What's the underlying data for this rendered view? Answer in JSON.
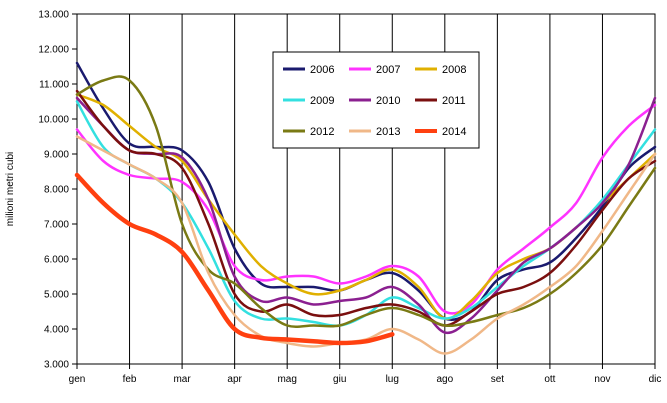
{
  "chart_data": {
    "type": "line",
    "title": "",
    "ylabel": "milioni metri cubi",
    "xlabel": "",
    "categories": [
      "gen",
      "feb",
      "mar",
      "apr",
      "mag",
      "giu",
      "lug",
      "ago",
      "set",
      "ott",
      "nov",
      "dic"
    ],
    "ylim": [
      3000,
      13000
    ],
    "ystep": 1000,
    "ytick_labels": [
      "3.000",
      "4.000",
      "5.000",
      "6.000",
      "7.000",
      "8.000",
      "9.000",
      "10.000",
      "11.000",
      "12.000",
      "13.000"
    ],
    "legend_position": "top-center",
    "legend_columns": 3,
    "series": [
      {
        "name": "2006",
        "color": "#1a1a6e",
        "width": 2.5,
        "points": [
          [
            0,
            11600
          ],
          [
            0.5,
            10300
          ],
          [
            1,
            9300
          ],
          [
            1.5,
            9200
          ],
          [
            2,
            9100
          ],
          [
            2.5,
            8200
          ],
          [
            3,
            6300
          ],
          [
            3.5,
            5300
          ],
          [
            4,
            5200
          ],
          [
            4.5,
            5200
          ],
          [
            5,
            5100
          ],
          [
            5.5,
            5400
          ],
          [
            6,
            5600
          ],
          [
            6.5,
            5100
          ],
          [
            7,
            4300
          ],
          [
            7.5,
            4500
          ],
          [
            8,
            5400
          ],
          [
            8.5,
            5700
          ],
          [
            9,
            5900
          ],
          [
            9.5,
            6600
          ],
          [
            10,
            7500
          ],
          [
            10.5,
            8600
          ],
          [
            11,
            9200
          ]
        ]
      },
      {
        "name": "2007",
        "color": "#ff33ff",
        "width": 2.5,
        "points": [
          [
            0,
            9700
          ],
          [
            0.5,
            8800
          ],
          [
            1,
            8400
          ],
          [
            1.5,
            8300
          ],
          [
            2,
            8200
          ],
          [
            2.5,
            7400
          ],
          [
            3,
            5800
          ],
          [
            3.5,
            5400
          ],
          [
            4,
            5500
          ],
          [
            4.5,
            5500
          ],
          [
            5,
            5300
          ],
          [
            5.5,
            5500
          ],
          [
            6,
            5800
          ],
          [
            6.5,
            5500
          ],
          [
            7,
            4500
          ],
          [
            7.5,
            4700
          ],
          [
            8,
            5700
          ],
          [
            8.5,
            6300
          ],
          [
            9,
            6900
          ],
          [
            9.5,
            7600
          ],
          [
            10,
            8900
          ],
          [
            10.5,
            9800
          ],
          [
            11,
            10400
          ]
        ]
      },
      {
        "name": "2008",
        "color": "#e0b000",
        "width": 2.5,
        "points": [
          [
            0,
            10700
          ],
          [
            0.5,
            10400
          ],
          [
            1,
            9800
          ],
          [
            1.5,
            9200
          ],
          [
            2,
            8800
          ],
          [
            2.5,
            7700
          ],
          [
            3,
            6700
          ],
          [
            3.5,
            5800
          ],
          [
            4,
            5300
          ],
          [
            4.5,
            5000
          ],
          [
            5,
            5100
          ],
          [
            5.5,
            5400
          ],
          [
            6,
            5700
          ],
          [
            6.5,
            5200
          ],
          [
            7,
            4300
          ],
          [
            7.5,
            4800
          ],
          [
            8,
            5600
          ],
          [
            8.5,
            6000
          ],
          [
            9,
            6300
          ],
          [
            9.5,
            6900
          ],
          [
            10,
            7600
          ],
          [
            10.5,
            8300
          ],
          [
            11,
            9000
          ]
        ]
      },
      {
        "name": "2009",
        "color": "#33e0e0",
        "width": 2.5,
        "points": [
          [
            0,
            10500
          ],
          [
            0.5,
            9200
          ],
          [
            1,
            8700
          ],
          [
            1.5,
            8300
          ],
          [
            2,
            7600
          ],
          [
            2.5,
            6300
          ],
          [
            3,
            4800
          ],
          [
            3.5,
            4300
          ],
          [
            4,
            4300
          ],
          [
            4.5,
            4200
          ],
          [
            5,
            4100
          ],
          [
            5.5,
            4400
          ],
          [
            6,
            4900
          ],
          [
            6.5,
            4600
          ],
          [
            7,
            4300
          ],
          [
            7.5,
            4600
          ],
          [
            8,
            5200
          ],
          [
            8.5,
            5800
          ],
          [
            9,
            6300
          ],
          [
            9.5,
            6900
          ],
          [
            10,
            7700
          ],
          [
            10.5,
            8700
          ],
          [
            11,
            9700
          ]
        ]
      },
      {
        "name": "2010",
        "color": "#8b2090",
        "width": 2.5,
        "points": [
          [
            0,
            10600
          ],
          [
            0.5,
            9800
          ],
          [
            1,
            9100
          ],
          [
            1.5,
            9000
          ],
          [
            2,
            8900
          ],
          [
            2.5,
            7700
          ],
          [
            3,
            5500
          ],
          [
            3.5,
            4800
          ],
          [
            4,
            4900
          ],
          [
            4.5,
            4700
          ],
          [
            5,
            4800
          ],
          [
            5.5,
            4900
          ],
          [
            6,
            5200
          ],
          [
            6.5,
            4700
          ],
          [
            7,
            3900
          ],
          [
            7.5,
            4300
          ],
          [
            8,
            5100
          ],
          [
            8.5,
            5900
          ],
          [
            9,
            6300
          ],
          [
            9.5,
            6900
          ],
          [
            10,
            7600
          ],
          [
            10.5,
            8700
          ],
          [
            11,
            10600
          ]
        ]
      },
      {
        "name": "2011",
        "color": "#7a0f0f",
        "width": 2.5,
        "points": [
          [
            0,
            10800
          ],
          [
            0.5,
            9800
          ],
          [
            1,
            9100
          ],
          [
            1.5,
            9000
          ],
          [
            2,
            8600
          ],
          [
            2.5,
            7000
          ],
          [
            3,
            5000
          ],
          [
            3.5,
            4500
          ],
          [
            4,
            4700
          ],
          [
            4.5,
            4400
          ],
          [
            5,
            4400
          ],
          [
            5.5,
            4600
          ],
          [
            6,
            4700
          ],
          [
            6.5,
            4500
          ],
          [
            7,
            4100
          ],
          [
            7.5,
            4500
          ],
          [
            8,
            5000
          ],
          [
            8.5,
            5200
          ],
          [
            9,
            5600
          ],
          [
            9.5,
            6400
          ],
          [
            10,
            7400
          ],
          [
            10.5,
            8300
          ],
          [
            11,
            8800
          ]
        ]
      },
      {
        "name": "2012",
        "color": "#7a7a14",
        "width": 2.5,
        "points": [
          [
            0,
            10700
          ],
          [
            0.5,
            11100
          ],
          [
            1,
            11100
          ],
          [
            1.5,
            9800
          ],
          [
            2,
            7000
          ],
          [
            2.5,
            5700
          ],
          [
            3,
            5300
          ],
          [
            3.5,
            4600
          ],
          [
            4,
            4100
          ],
          [
            4.5,
            4100
          ],
          [
            5,
            4100
          ],
          [
            5.5,
            4400
          ],
          [
            6,
            4600
          ],
          [
            6.5,
            4400
          ],
          [
            7,
            4100
          ],
          [
            7.5,
            4200
          ],
          [
            8,
            4400
          ],
          [
            8.5,
            4600
          ],
          [
            9,
            5000
          ],
          [
            9.5,
            5600
          ],
          [
            10,
            6400
          ],
          [
            10.5,
            7500
          ],
          [
            11,
            8600
          ]
        ]
      },
      {
        "name": "2013",
        "color": "#f0b888",
        "width": 2.5,
        "points": [
          [
            0,
            9500
          ],
          [
            0.5,
            9100
          ],
          [
            1,
            8700
          ],
          [
            1.5,
            8300
          ],
          [
            2,
            7600
          ],
          [
            2.5,
            5600
          ],
          [
            3,
            4400
          ],
          [
            3.5,
            3800
          ],
          [
            4,
            3600
          ],
          [
            4.5,
            3500
          ],
          [
            5,
            3600
          ],
          [
            5.5,
            3700
          ],
          [
            6,
            4000
          ],
          [
            6.5,
            3700
          ],
          [
            7,
            3300
          ],
          [
            7.5,
            3700
          ],
          [
            8,
            4300
          ],
          [
            8.5,
            4700
          ],
          [
            9,
            5200
          ],
          [
            9.5,
            5800
          ],
          [
            10,
            6800
          ],
          [
            10.5,
            7900
          ],
          [
            11,
            9000
          ]
        ]
      },
      {
        "name": "2014",
        "color": "#ff4010",
        "width": 4.5,
        "points": [
          [
            0,
            8400
          ],
          [
            0.5,
            7600
          ],
          [
            1,
            7000
          ],
          [
            1.5,
            6700
          ],
          [
            2,
            6200
          ],
          [
            2.5,
            5100
          ],
          [
            3,
            4000
          ],
          [
            3.5,
            3750
          ],
          [
            4,
            3700
          ],
          [
            4.5,
            3650
          ],
          [
            5,
            3600
          ],
          [
            5.5,
            3650
          ],
          [
            6,
            3850
          ]
        ]
      }
    ]
  }
}
